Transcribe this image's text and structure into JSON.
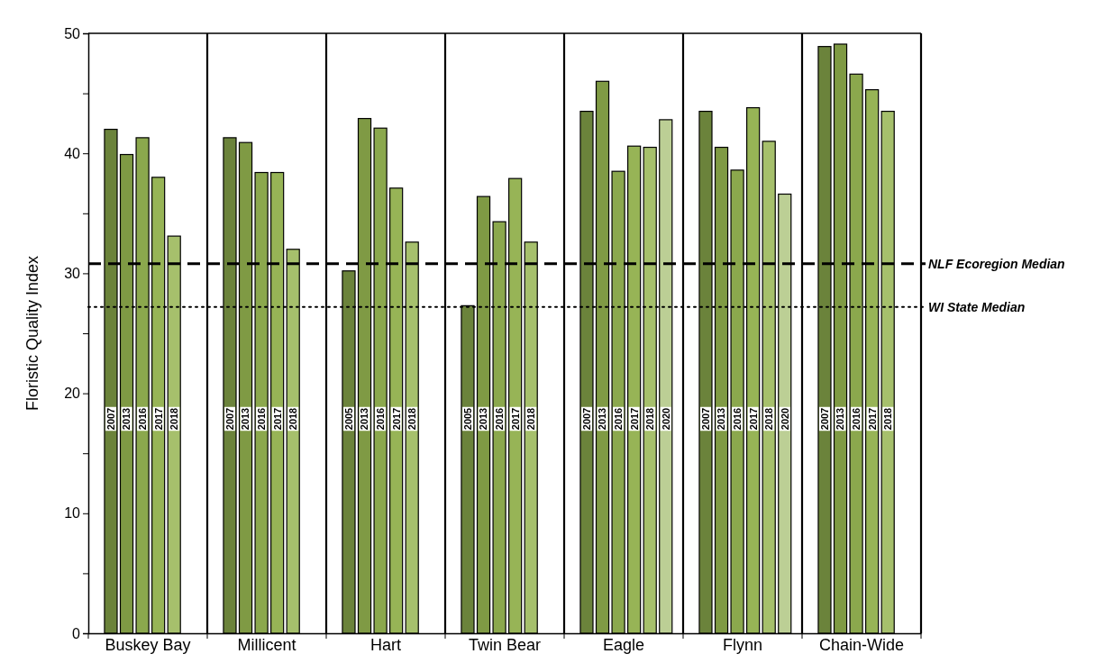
{
  "chart_data": {
    "type": "bar",
    "ylabel": "Floristic Quality Index",
    "categories": [
      "Buskey Bay",
      "Millicent",
      "Hart",
      "Twin Bear",
      "Eagle",
      "Flynn",
      "Chain-Wide"
    ],
    "series": [
      {
        "name": "2005",
        "color": "#6b833b",
        "values": [
          null,
          null,
          30.2,
          27.3,
          null,
          null,
          null
        ]
      },
      {
        "name": "2007",
        "color": "#6b833b",
        "values": [
          42.0,
          41.3,
          null,
          null,
          43.5,
          43.5,
          48.9
        ]
      },
      {
        "name": "2013",
        "color": "#7f9a44",
        "values": [
          39.9,
          40.9,
          42.9,
          36.4,
          46.0,
          40.5,
          49.1
        ]
      },
      {
        "name": "2016",
        "color": "#8ba84d",
        "values": [
          41.3,
          38.4,
          42.1,
          34.3,
          38.5,
          38.6,
          46.6
        ]
      },
      {
        "name": "2017",
        "color": "#97b456",
        "values": [
          38.0,
          38.4,
          37.1,
          37.9,
          40.6,
          43.8,
          45.3
        ]
      },
      {
        "name": "2018",
        "color": "#a6c06c",
        "values": [
          33.1,
          32.0,
          32.6,
          32.6,
          40.5,
          41.0,
          43.5
        ]
      },
      {
        "name": "2020",
        "color": "#bccf95",
        "values": [
          null,
          null,
          null,
          null,
          42.8,
          36.6,
          null
        ]
      }
    ],
    "ylim": [
      0,
      50
    ],
    "yticks": [
      0,
      {
        "value": 5,
        "label": null
      },
      10,
      {
        "value": 15,
        "label": null
      },
      20,
      {
        "value": 25,
        "label": null
      },
      30,
      {
        "value": 35,
        "label": null
      },
      40,
      {
        "value": 45,
        "label": null
      },
      50
    ],
    "ref_lines": [
      {
        "axis": "y",
        "value": 30.8,
        "label": "NLF Ecoregion Median",
        "line_style": "dashed"
      },
      {
        "axis": "y",
        "value": 27.2,
        "label": "WI State Median",
        "line_style": "dotted"
      }
    ],
    "grid": "x"
  }
}
